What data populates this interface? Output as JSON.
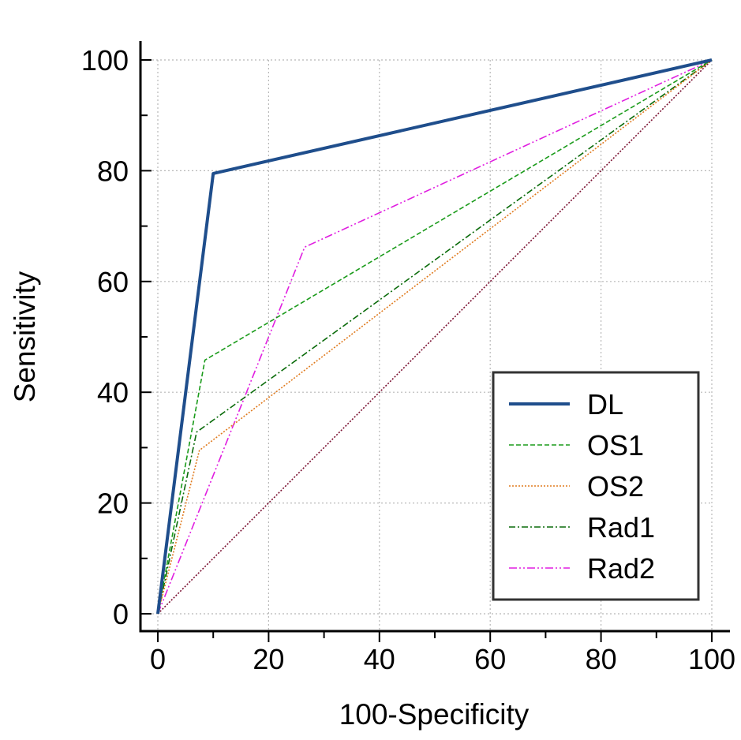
{
  "chart_data": {
    "type": "line",
    "title": "",
    "xlabel": "100-Specificity",
    "ylabel": "Sensitivity",
    "xlim": [
      0,
      100
    ],
    "ylim": [
      0,
      100
    ],
    "xticks": [
      "0",
      "20",
      "40",
      "60",
      "80",
      "100"
    ],
    "yticks": [
      "0",
      "20",
      "40",
      "60",
      "80",
      "100"
    ],
    "grid": true,
    "legend_position": "bottom-right",
    "series": [
      {
        "name": "DL",
        "color": "#1f4e8c",
        "style": "solid",
        "points": [
          [
            0,
            0
          ],
          [
            10,
            79.5
          ],
          [
            100,
            100
          ]
        ]
      },
      {
        "name": "OS1",
        "color": "#1a9b1a",
        "style": "dashed",
        "points": [
          [
            0,
            0
          ],
          [
            8.5,
            45.8
          ],
          [
            100,
            100
          ]
        ]
      },
      {
        "name": "OS2",
        "color": "#e07b1f",
        "style": "dotted",
        "points": [
          [
            0,
            0
          ],
          [
            7.5,
            29.5
          ],
          [
            100,
            100
          ]
        ]
      },
      {
        "name": "Rad1",
        "color": "#0a6b0a",
        "style": "dashdot",
        "points": [
          [
            0,
            0
          ],
          [
            7,
            32.8
          ],
          [
            100,
            100
          ]
        ]
      },
      {
        "name": "Rad2",
        "color": "#e01ee0",
        "style": "dashdotdot",
        "points": [
          [
            0,
            0
          ],
          [
            26.5,
            66.2
          ],
          [
            100,
            100
          ]
        ]
      }
    ],
    "reference_line": {
      "color": "#7a1030",
      "points": [
        [
          0,
          0
        ],
        [
          100,
          100
        ]
      ]
    }
  }
}
